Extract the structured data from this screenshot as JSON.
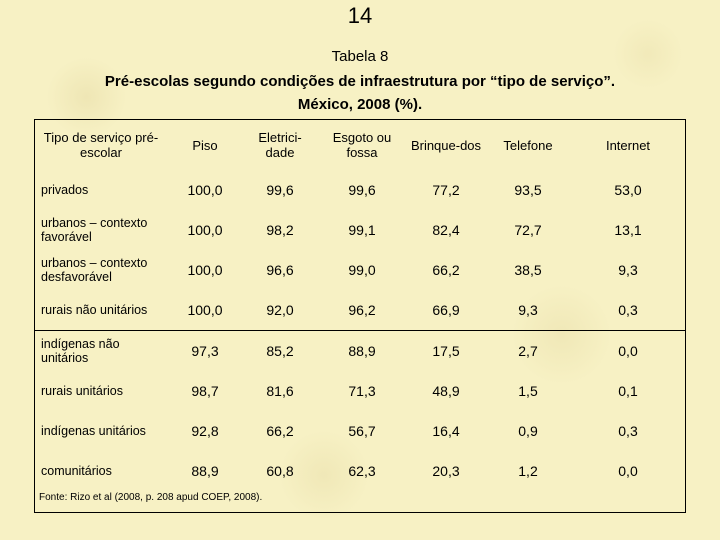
{
  "page_number": "14",
  "table_label": "Tabela 8",
  "caption_line1": "Pré-escolas segundo condições de infraestrutura por “tipo de serviço”.",
  "caption_line2": "México, 2008 (%).",
  "headers": [
    "Tipo de serviço pré-escolar",
    "Piso",
    "Eletrici-dade",
    "Esgoto ou fossa",
    "Brinque-dos",
    "Telefone",
    "Internet"
  ],
  "rows": [
    {
      "label": "privados",
      "values": [
        "100,0",
        "99,6",
        "99,6",
        "77,2",
        "93,5",
        "53,0"
      ]
    },
    {
      "label": "urbanos – contexto favorável",
      "values": [
        "100,0",
        "98,2",
        "99,1",
        "82,4",
        "72,7",
        "13,1"
      ]
    },
    {
      "label": "urbanos – contexto desfavorável",
      "values": [
        "100,0",
        "96,6",
        "99,0",
        "66,2",
        "38,5",
        "9,3"
      ]
    },
    {
      "label": "rurais não unitários",
      "values": [
        "100,0",
        "92,0",
        "96,2",
        "66,9",
        "9,3",
        "0,3"
      ]
    },
    {
      "label": "indígenas não unitários",
      "values": [
        "97,3",
        "85,2",
        "88,9",
        "17,5",
        "2,7",
        "0,0"
      ]
    },
    {
      "label": "rurais unitários",
      "values": [
        "98,7",
        "81,6",
        "71,3",
        "48,9",
        "1,5",
        "0,1"
      ]
    },
    {
      "label": "indígenas unitários",
      "values": [
        "92,8",
        "66,2",
        "56,7",
        "16,4",
        "0,9",
        "0,3"
      ]
    },
    {
      "label": "comunitários",
      "values": [
        "88,9",
        "60,8",
        "62,3",
        "20,3",
        "1,2",
        "0,0"
      ]
    }
  ],
  "source": "Fonte: Rizo et al (2008, p. 208 apud COEP, 2008)."
}
